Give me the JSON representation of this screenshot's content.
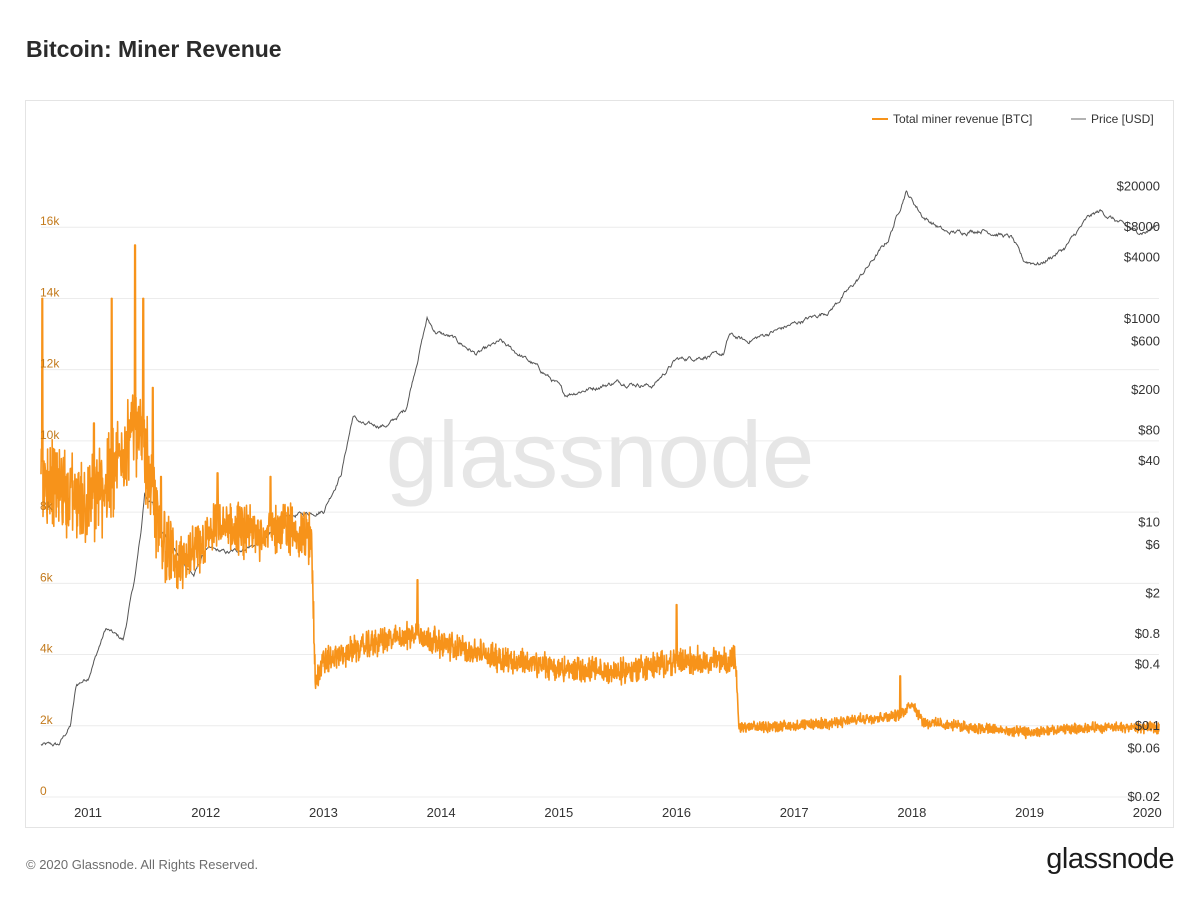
{
  "title": "Bitcoin: Miner Revenue",
  "footer": {
    "copyright": "© 2020 Glassnode. All Rights Reserved.",
    "logo": "glassnode"
  },
  "watermark": "glassnode",
  "colors": {
    "revenue": "#f7931a",
    "price": "#555555",
    "left_axis": "#c37a1c",
    "right_axis": "#333333",
    "grid": "#ececec"
  },
  "chart_data": {
    "type": "line",
    "title": "Bitcoin: Miner Revenue",
    "legend": [
      {
        "name": "Total miner revenue [BTC]",
        "color": "#f7931a"
      },
      {
        "name": "Price [USD]",
        "color": "#999999"
      }
    ],
    "x_range": [
      2010.6,
      2020.1
    ],
    "x_ticks": [
      2011,
      2012,
      2013,
      2014,
      2015,
      2016,
      2017,
      2018,
      2019,
      2020
    ],
    "y_left": {
      "range": [
        0,
        18000
      ],
      "ticks": [
        0,
        2000,
        4000,
        6000,
        8000,
        10000,
        12000,
        14000,
        16000
      ],
      "tick_labels": [
        "0",
        "2k",
        "4k",
        "6k",
        "8k",
        "10k",
        "12k",
        "14k",
        "16k"
      ]
    },
    "y_right": {
      "scale": "log",
      "range": [
        0.02,
        40000
      ],
      "ticks": [
        20000,
        8000,
        4000,
        1000,
        600,
        200,
        80,
        40,
        10,
        6,
        2,
        0.8,
        0.4,
        0.1,
        0.06,
        0.02
      ],
      "tick_labels": [
        "$20000",
        "$8000",
        "$4000",
        "$1000",
        "$600",
        "$200",
        "$80",
        "$40",
        "$10",
        "$6",
        "$2",
        "$0.8",
        "$0.4",
        "$0.1",
        "$0.06",
        "$0.02"
      ]
    },
    "series": [
      {
        "name": "Total miner revenue [BTC]",
        "axis": "left",
        "anchors": [
          [
            2010.6,
            9000
          ],
          [
            2010.85,
            8500
          ],
          [
            2011.0,
            8200
          ],
          [
            2011.2,
            9000
          ],
          [
            2011.4,
            10500
          ],
          [
            2011.5,
            9500
          ],
          [
            2011.6,
            7500
          ],
          [
            2011.75,
            6500
          ],
          [
            2011.9,
            6800
          ],
          [
            2012.1,
            7600
          ],
          [
            2012.4,
            7400
          ],
          [
            2012.7,
            7600
          ],
          [
            2012.9,
            7200
          ],
          [
            2012.93,
            3300
          ],
          [
            2013.0,
            3800
          ],
          [
            2013.4,
            4300
          ],
          [
            2013.8,
            4600
          ],
          [
            2014.0,
            4300
          ],
          [
            2014.5,
            3900
          ],
          [
            2015.0,
            3600
          ],
          [
            2015.5,
            3500
          ],
          [
            2016.0,
            3800
          ],
          [
            2016.5,
            3850
          ],
          [
            2016.53,
            1950
          ],
          [
            2017.0,
            2000
          ],
          [
            2017.4,
            2100
          ],
          [
            2017.6,
            2200
          ],
          [
            2017.9,
            2300
          ],
          [
            2018.0,
            2650
          ],
          [
            2018.1,
            2100
          ],
          [
            2018.5,
            1950
          ],
          [
            2019.0,
            1800
          ],
          [
            2019.5,
            1950
          ],
          [
            2020.1,
            1950
          ]
        ],
        "noise": [
          [
            2010.6,
            1500
          ],
          [
            2011.7,
            1500
          ],
          [
            2011.75,
            900
          ],
          [
            2012.93,
            900
          ],
          [
            2012.94,
            450
          ],
          [
            2016.5,
            450
          ],
          [
            2016.53,
            180
          ],
          [
            2020.1,
            180
          ]
        ],
        "spikes": [
          [
            2010.61,
            14000
          ],
          [
            2011.05,
            10500
          ],
          [
            2011.2,
            14000
          ],
          [
            2011.4,
            15500
          ],
          [
            2011.47,
            14000
          ],
          [
            2011.55,
            11500
          ],
          [
            2011.62,
            9000
          ],
          [
            2012.1,
            9100
          ],
          [
            2012.55,
            9000
          ],
          [
            2013.8,
            6100
          ],
          [
            2016.0,
            5400
          ],
          [
            2017.9,
            3400
          ]
        ]
      },
      {
        "name": "Price [USD]",
        "axis": "right",
        "anchors": [
          [
            2010.6,
            0.065
          ],
          [
            2010.75,
            0.065
          ],
          [
            2010.85,
            0.1
          ],
          [
            2010.9,
            0.25
          ],
          [
            2011.0,
            0.3
          ],
          [
            2011.15,
            0.9
          ],
          [
            2011.3,
            0.7
          ],
          [
            2011.4,
            3
          ],
          [
            2011.45,
            8
          ],
          [
            2011.48,
            19
          ],
          [
            2011.55,
            15
          ],
          [
            2011.6,
            10
          ],
          [
            2011.75,
            5
          ],
          [
            2011.9,
            3
          ],
          [
            2012.0,
            5.5
          ],
          [
            2012.2,
            5
          ],
          [
            2012.5,
            6.5
          ],
          [
            2012.65,
            11
          ],
          [
            2012.8,
            12
          ],
          [
            2013.0,
            13
          ],
          [
            2013.15,
            30
          ],
          [
            2013.25,
            110
          ],
          [
            2013.35,
            90
          ],
          [
            2013.55,
            90
          ],
          [
            2013.7,
            130
          ],
          [
            2013.88,
            1000
          ],
          [
            2013.95,
            750
          ],
          [
            2014.1,
            650
          ],
          [
            2014.3,
            450
          ],
          [
            2014.5,
            600
          ],
          [
            2014.8,
            350
          ],
          [
            2015.0,
            220
          ],
          [
            2015.05,
            180
          ],
          [
            2015.5,
            240
          ],
          [
            2015.8,
            220
          ],
          [
            2016.0,
            400
          ],
          [
            2016.4,
            450
          ],
          [
            2016.45,
            700
          ],
          [
            2016.6,
            600
          ],
          [
            2017.0,
            900
          ],
          [
            2017.3,
            1200
          ],
          [
            2017.55,
            2500
          ],
          [
            2017.8,
            6000
          ],
          [
            2017.95,
            18000
          ],
          [
            2018.1,
            10000
          ],
          [
            2018.3,
            7000
          ],
          [
            2018.6,
            7500
          ],
          [
            2018.85,
            6300
          ],
          [
            2018.95,
            3700
          ],
          [
            2019.1,
            3500
          ],
          [
            2019.3,
            5000
          ],
          [
            2019.5,
            10000
          ],
          [
            2019.6,
            11500
          ],
          [
            2019.75,
            9000
          ],
          [
            2019.9,
            7200
          ],
          [
            2020.0,
            7200
          ],
          [
            2020.1,
            8800
          ]
        ],
        "noise_pct": 0.07
      }
    ]
  }
}
